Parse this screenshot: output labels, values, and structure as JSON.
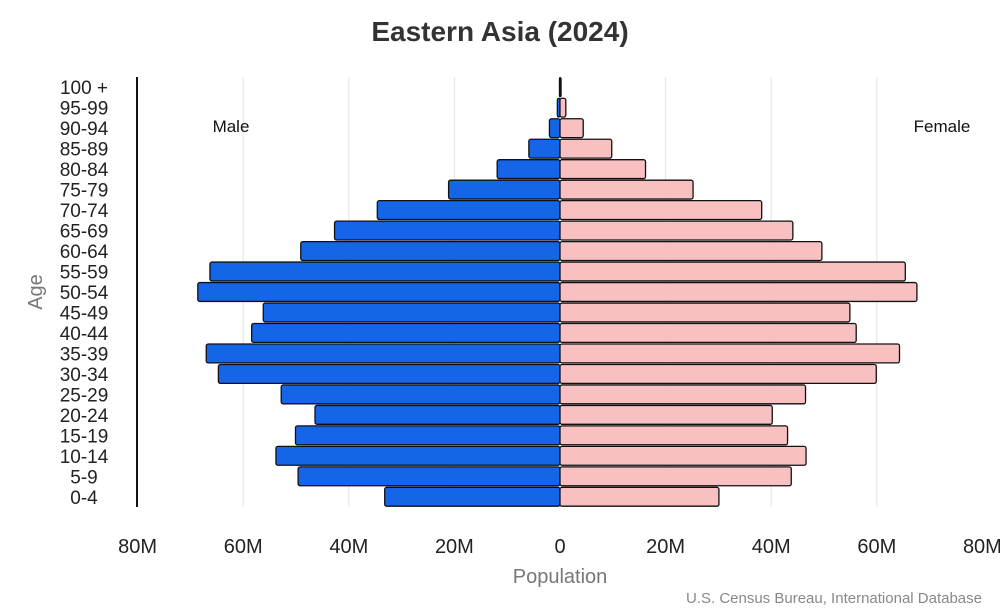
{
  "chart_data": {
    "type": "bar",
    "orientation": "horizontal",
    "title": "Eastern Asia (2024)",
    "xlabel": "Population",
    "ylabel": "Age",
    "x_tick_labels": [
      "80M",
      "60M",
      "40M",
      "20M",
      "0",
      "20M",
      "40M",
      "60M",
      "80M"
    ],
    "xlim": [
      -80,
      80
    ],
    "x_unit": "millions",
    "side_labels": {
      "left": "Male",
      "right": "Female"
    },
    "source": "U.S. Census Bureau, International Database",
    "categories": [
      "100 +",
      "95-99",
      "90-94",
      "85-89",
      "80-84",
      "75-79",
      "70-74",
      "65-69",
      "60-64",
      "55-59",
      "50-54",
      "45-49",
      "40-44",
      "35-39",
      "30-34",
      "25-29",
      "20-24",
      "15-19",
      "10-14",
      "5-9",
      "0-4"
    ],
    "series": [
      {
        "name": "Male",
        "color": "#1565e8",
        "values": [
          0.1,
          0.5,
          2.0,
          5.9,
          11.9,
          21.1,
          34.6,
          42.7,
          49.1,
          66.3,
          68.6,
          56.2,
          58.4,
          67.0,
          64.7,
          52.8,
          46.4,
          50.1,
          53.8,
          49.6,
          33.2
        ]
      },
      {
        "name": "Female",
        "color": "#f8c0c0",
        "values": [
          0.2,
          1.1,
          4.4,
          9.8,
          16.2,
          25.2,
          38.2,
          44.1,
          49.6,
          65.4,
          67.6,
          54.9,
          56.1,
          64.3,
          59.9,
          46.5,
          40.2,
          43.1,
          46.6,
          43.8,
          30.1
        ]
      }
    ],
    "grid": true
  }
}
